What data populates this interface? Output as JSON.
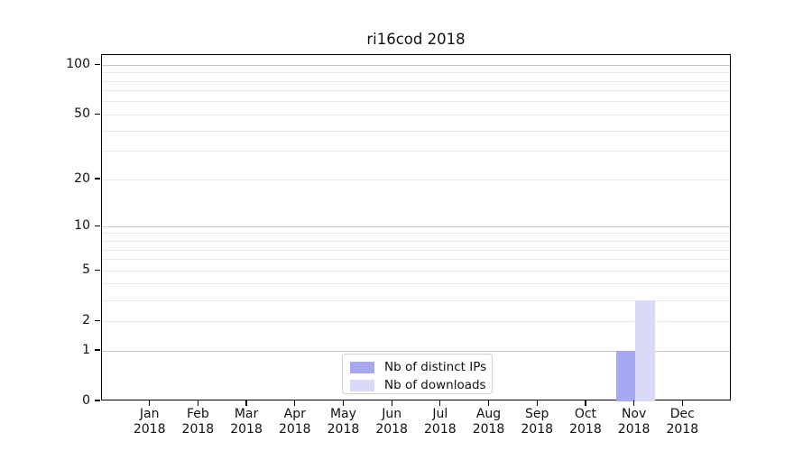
{
  "chart_data": {
    "type": "bar",
    "title": "ri16cod 2018",
    "categories": [
      "Jan",
      "Feb",
      "Mar",
      "Apr",
      "May",
      "Jun",
      "Jul",
      "Aug",
      "Sep",
      "Oct",
      "Nov",
      "Dec"
    ],
    "x_tick_year_line": "2018",
    "series": [
      {
        "name": "Nb of distinct IPs",
        "color": "#a8a8f2",
        "values": [
          0,
          0,
          0,
          0,
          0,
          0,
          0,
          0,
          0,
          0,
          1,
          0
        ]
      },
      {
        "name": "Nb of downloads",
        "color": "#d9d9f8",
        "values": [
          0,
          0,
          0,
          0,
          0,
          0,
          0,
          0,
          0,
          0,
          3,
          0
        ]
      }
    ],
    "y_axis": {
      "scale": "log10(1+x)",
      "ylim": [
        0,
        115
      ],
      "tick_values": [
        0,
        1,
        2,
        5,
        10,
        20,
        50,
        100
      ],
      "tick_labels": [
        "0",
        "1",
        "2",
        "5",
        "10",
        "20",
        "50",
        "100"
      ],
      "major_gridlines": [
        1,
        10,
        100
      ],
      "minor_gridlines": [
        2,
        3,
        4,
        5,
        6,
        7,
        8,
        9,
        20,
        30,
        40,
        50,
        60,
        70,
        80,
        90
      ]
    },
    "legend": {
      "position": "lower center"
    },
    "grid": true
  },
  "colors": {
    "grid_major": "#c6c6c6",
    "grid_minor": "#e9e9e9",
    "axis_frame": "#000000",
    "legend_border": "#d2d2d2",
    "text": "#111111",
    "background": "#ffffff"
  }
}
